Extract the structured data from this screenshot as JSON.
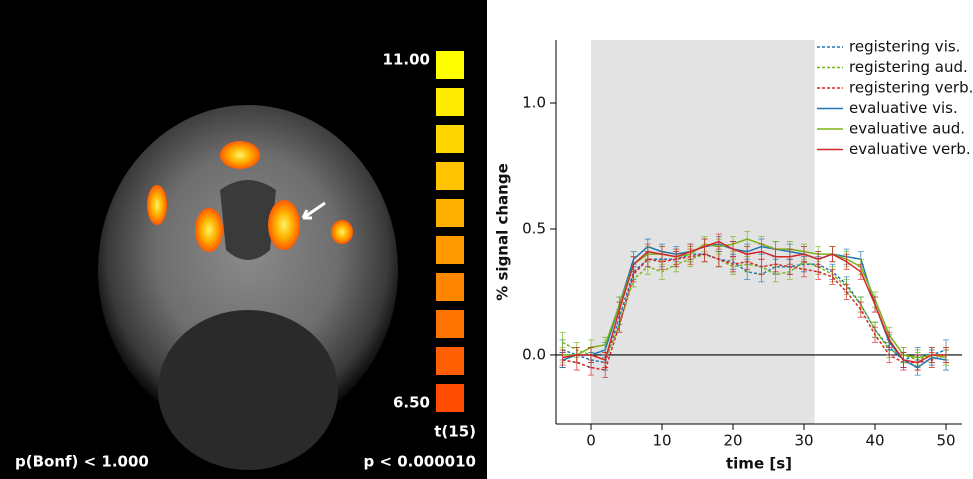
{
  "image_panel": {
    "colorbar_max": "11.00",
    "colorbar_min": "6.50",
    "colorbar_label": "t(15)",
    "left_note": "p(Bonf) < 1.000",
    "right_note": "p < 0.000010"
  },
  "chart_data": {
    "type": "line",
    "xlabel": "time [s]",
    "ylabel": "% signal change",
    "x": [
      -4,
      -2,
      0,
      2,
      4,
      6,
      8,
      10,
      12,
      14,
      16,
      18,
      20,
      22,
      24,
      26,
      28,
      30,
      32,
      34,
      36,
      38,
      40,
      42,
      44,
      46,
      48,
      50
    ],
    "xlim": [
      -4.93,
      52.25
    ],
    "ylim": [
      -0.274,
      1.25
    ],
    "xticks": [
      0,
      10,
      20,
      30,
      40,
      50
    ],
    "yticks": [
      {
        "value": 0,
        "label": "0.0"
      },
      {
        "value": 0.5,
        "label": "0.5"
      },
      {
        "value": 1,
        "label": "1.0"
      }
    ],
    "shaded_span": [
      0,
      31.5
    ],
    "hline": 0,
    "legend": "upper right",
    "series": [
      {
        "name": "registering vis.",
        "color": "#1f77b4",
        "dashed": true,
        "values": [
          0.02,
          0.0,
          -0.02,
          -0.03,
          0.15,
          0.33,
          0.38,
          0.38,
          0.38,
          0.4,
          0.4,
          0.38,
          0.37,
          0.33,
          0.32,
          0.35,
          0.35,
          0.36,
          0.36,
          0.33,
          0.28,
          0.2,
          0.1,
          0.03,
          -0.02,
          0.0,
          0.0,
          0.02
        ],
        "errors": [
          0.04,
          0.03,
          0.03,
          0.03,
          0.03,
          0.03,
          0.03,
          0.03,
          0.03,
          0.03,
          0.03,
          0.03,
          0.03,
          0.03,
          0.03,
          0.03,
          0.03,
          0.03,
          0.03,
          0.03,
          0.03,
          0.03,
          0.03,
          0.03,
          0.03,
          0.03,
          0.03,
          0.04
        ]
      },
      {
        "name": "registering aud.",
        "color": "#7ab317",
        "dashed": true,
        "values": [
          0.05,
          0.02,
          0.0,
          -0.02,
          0.12,
          0.3,
          0.35,
          0.33,
          0.36,
          0.38,
          0.4,
          0.38,
          0.35,
          0.36,
          0.35,
          0.32,
          0.33,
          0.37,
          0.35,
          0.32,
          0.27,
          0.2,
          0.1,
          0.02,
          0.0,
          -0.02,
          0.0,
          0.0
        ],
        "errors": [
          0.04,
          0.03,
          0.03,
          0.03,
          0.03,
          0.03,
          0.03,
          0.03,
          0.03,
          0.03,
          0.03,
          0.03,
          0.03,
          0.03,
          0.03,
          0.03,
          0.03,
          0.03,
          0.03,
          0.03,
          0.03,
          0.03,
          0.03,
          0.03,
          0.03,
          0.03,
          0.03,
          0.03
        ]
      },
      {
        "name": "registering verb.",
        "color": "#d62728",
        "dashed": true,
        "values": [
          -0.02,
          -0.03,
          -0.05,
          -0.06,
          0.12,
          0.32,
          0.38,
          0.37,
          0.38,
          0.39,
          0.4,
          0.38,
          0.36,
          0.37,
          0.35,
          0.36,
          0.35,
          0.34,
          0.33,
          0.31,
          0.25,
          0.18,
          0.08,
          0.0,
          -0.03,
          -0.03,
          -0.02,
          0.0
        ],
        "errors": [
          0.03,
          0.03,
          0.03,
          0.03,
          0.03,
          0.03,
          0.03,
          0.03,
          0.03,
          0.03,
          0.03,
          0.03,
          0.03,
          0.03,
          0.03,
          0.03,
          0.03,
          0.03,
          0.03,
          0.03,
          0.03,
          0.03,
          0.03,
          0.03,
          0.03,
          0.03,
          0.03,
          0.03
        ]
      },
      {
        "name": "evaluative vis.",
        "color": "#1f77b4",
        "dashed": false,
        "values": [
          -0.02,
          0.0,
          0.0,
          0.02,
          0.2,
          0.38,
          0.43,
          0.41,
          0.4,
          0.41,
          0.43,
          0.44,
          0.42,
          0.41,
          0.43,
          0.42,
          0.41,
          0.4,
          0.38,
          0.4,
          0.39,
          0.38,
          0.2,
          0.05,
          -0.02,
          -0.05,
          -0.01,
          -0.02
        ],
        "errors": [
          0.03,
          0.03,
          0.03,
          0.03,
          0.03,
          0.03,
          0.03,
          0.03,
          0.03,
          0.03,
          0.03,
          0.03,
          0.03,
          0.03,
          0.03,
          0.03,
          0.03,
          0.03,
          0.03,
          0.03,
          0.03,
          0.03,
          0.03,
          0.03,
          0.03,
          0.03,
          0.03,
          0.04
        ]
      },
      {
        "name": "evaluative aud.",
        "color": "#7ab317",
        "dashed": false,
        "values": [
          0.0,
          0.0,
          0.03,
          0.04,
          0.2,
          0.36,
          0.4,
          0.4,
          0.39,
          0.4,
          0.44,
          0.43,
          0.44,
          0.46,
          0.44,
          0.42,
          0.42,
          0.41,
          0.4,
          0.4,
          0.38,
          0.35,
          0.22,
          0.08,
          0.0,
          -0.01,
          0.0,
          -0.01
        ],
        "errors": [
          0.03,
          0.03,
          0.03,
          0.03,
          0.03,
          0.03,
          0.03,
          0.03,
          0.03,
          0.03,
          0.03,
          0.03,
          0.03,
          0.03,
          0.03,
          0.03,
          0.03,
          0.03,
          0.03,
          0.03,
          0.03,
          0.03,
          0.03,
          0.03,
          0.03,
          0.03,
          0.03,
          0.03
        ]
      },
      {
        "name": "evaluative verb.",
        "color": "#d62728",
        "dashed": false,
        "values": [
          -0.01,
          0.0,
          0.0,
          -0.02,
          0.18,
          0.36,
          0.41,
          0.4,
          0.39,
          0.41,
          0.43,
          0.45,
          0.42,
          0.4,
          0.41,
          0.39,
          0.39,
          0.4,
          0.38,
          0.4,
          0.37,
          0.33,
          0.2,
          0.06,
          -0.02,
          -0.03,
          0.0,
          0.0
        ],
        "errors": [
          0.03,
          0.03,
          0.03,
          0.03,
          0.03,
          0.03,
          0.03,
          0.03,
          0.03,
          0.03,
          0.03,
          0.03,
          0.03,
          0.03,
          0.03,
          0.03,
          0.03,
          0.03,
          0.03,
          0.03,
          0.03,
          0.03,
          0.03,
          0.03,
          0.03,
          0.03,
          0.03,
          0.03
        ]
      }
    ]
  }
}
